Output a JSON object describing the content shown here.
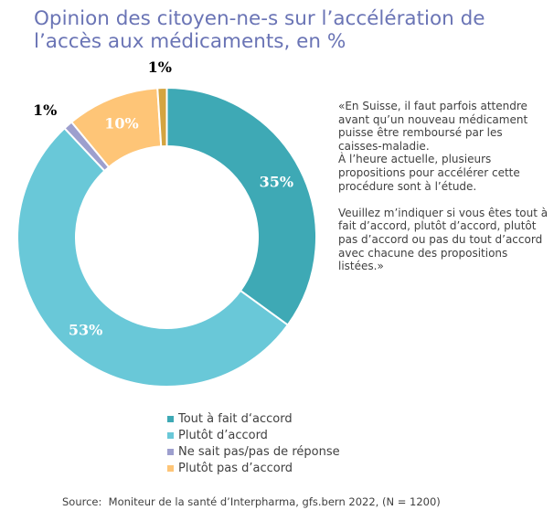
{
  "title": "Opinion des citoyen-ne-s sur l’accélération de l’accès aux médicaments, en %",
  "quote": "«En Suisse, il faut parfois attendre avant qu’un nouveau médicament puisse être remboursé par les caisses-maladie.\nÀ l’heure actuelle, plusieurs propositions pour accélérer cette procédure sont à l’étude.\n\nVeuillez m’indiquer si vous êtes tout à fait d’accord, plutôt d’accord, plutôt pas d’accord ou pas du tout d’accord avec chacune des propositions listées.»",
  "legend": [
    {
      "label": "Tout à fait d‘accord",
      "color": "#3ea9b5"
    },
    {
      "label": "Plutôt d’accord",
      "color": "#69c8d8"
    },
    {
      "label": "Ne sait pas/pas de réponse",
      "color": "#9d9fce"
    },
    {
      "label": "Plutôt pas d’accord",
      "color": "#fec577"
    }
  ],
  "source": "Source:  Moniteur de la santé d’Interpharma, gfs.bern 2022, (N = 1200)",
  "chart_data": {
    "type": "pie",
    "subtype": "donut",
    "title": "Opinion des citoyen-ne-s sur l’accélération de l’accès aux médicaments, en %",
    "start": "top",
    "direction": "clockwise",
    "legend_position": "bottom",
    "series": [
      {
        "name": "Tout à fait d‘accord",
        "value": 35,
        "label": "35%",
        "color": "#3ea9b5",
        "label_color": "#ffffff",
        "label_outside": false
      },
      {
        "name": "Plutôt d’accord",
        "value": 53,
        "label": "53%",
        "color": "#69c8d8",
        "label_color": "#ffffff",
        "label_outside": false
      },
      {
        "name": "Ne sait pas/pas de réponse",
        "value": 1,
        "label": "1%",
        "color": "#9d9fce",
        "label_color": "#000000",
        "label_outside": true
      },
      {
        "name": "Plutôt pas d’accord",
        "value": 10,
        "label": "10%",
        "color": "#fec577",
        "label_color": "#ffffff",
        "label_outside": false
      },
      {
        "name": "",
        "value": 1,
        "label": "1%",
        "color": "#d4a440",
        "label_color": "#000000",
        "label_outside": true
      }
    ]
  }
}
